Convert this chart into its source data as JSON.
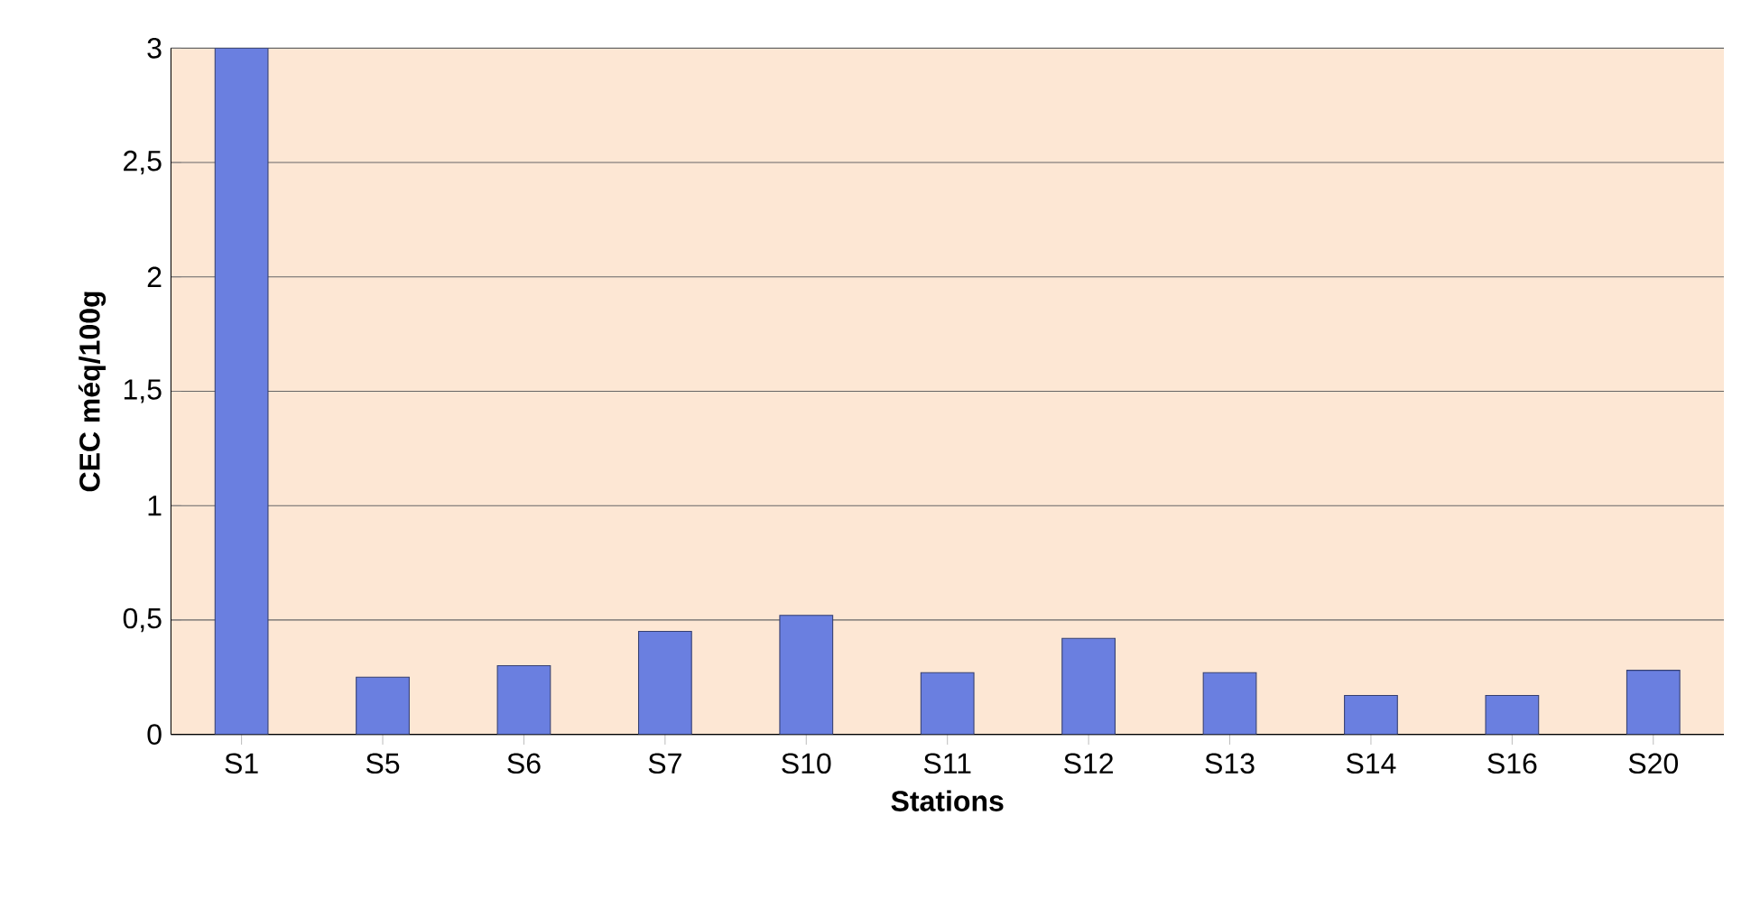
{
  "chart_data": {
    "type": "bar",
    "xlabel": "Stations",
    "ylabel": "CEC méq/100g",
    "categories": [
      "S1",
      "S5",
      "S6",
      "S7",
      "S10",
      "S11",
      "S12",
      "S13",
      "S14",
      "S16",
      "S20"
    ],
    "values": [
      3.0,
      0.25,
      0.3,
      0.45,
      0.52,
      0.27,
      0.42,
      0.27,
      0.17,
      0.17,
      0.28
    ],
    "color": "#6a7fe0",
    "ylim": [
      0,
      3
    ],
    "yticks": [
      0,
      {
        "value": 0.5,
        "label": "0,5"
      },
      1,
      {
        "value": 1.5,
        "label": "1,5"
      },
      2,
      {
        "value": 2.5,
        "label": "2,5"
      },
      3
    ],
    "grid": "y"
  }
}
